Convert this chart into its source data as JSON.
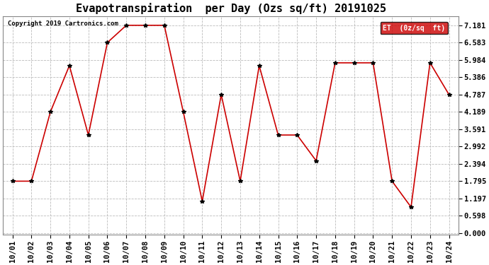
{
  "title": "Evapotranspiration  per Day (Ozs sq/ft) 20191025",
  "copyright": "Copyright 2019 Cartronics.com",
  "legend_label": "ET  (0z/sq  ft)",
  "x_labels": [
    "10/01",
    "10/02",
    "10/03",
    "10/04",
    "10/05",
    "10/06",
    "10/07",
    "10/08",
    "10/09",
    "10/10",
    "10/11",
    "10/12",
    "10/13",
    "10/14",
    "10/15",
    "10/16",
    "10/17",
    "10/18",
    "10/19",
    "10/20",
    "10/21",
    "10/22",
    "10/23",
    "10/24"
  ],
  "y_values": [
    1.795,
    1.795,
    4.189,
    5.787,
    3.39,
    6.583,
    7.181,
    7.181,
    7.181,
    4.189,
    1.1,
    4.787,
    1.795,
    5.787,
    3.39,
    3.39,
    2.5,
    5.884,
    5.884,
    5.884,
    1.795,
    0.9,
    5.884,
    4.787
  ],
  "line_color": "#cc0000",
  "marker_color": "#000000",
  "background_color": "#ffffff",
  "plot_bg_color": "#ffffff",
  "grid_color": "#bbbbbb",
  "y_ticks": [
    0.0,
    0.598,
    1.197,
    1.795,
    2.394,
    2.992,
    3.591,
    4.189,
    4.787,
    5.386,
    5.984,
    6.583,
    7.181
  ],
  "ylim": [
    -0.05,
    7.5
  ],
  "title_fontsize": 11,
  "tick_fontsize": 7.5,
  "copyright_fontsize": 6.5,
  "legend_bg": "#cc0000",
  "legend_text_color": "#ffffff"
}
